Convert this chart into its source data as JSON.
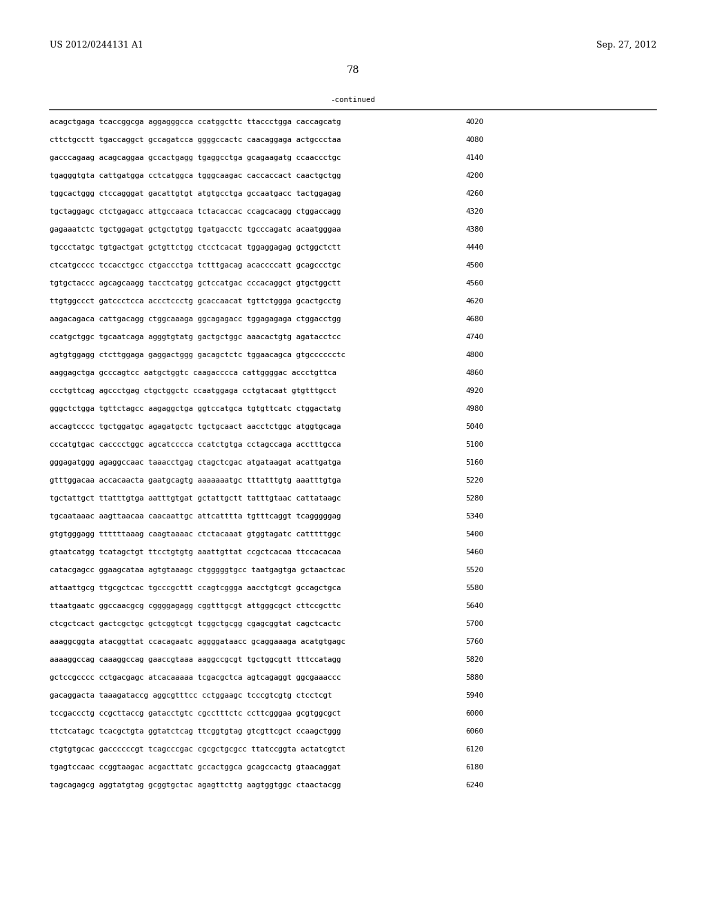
{
  "header_left": "US 2012/0244131 A1",
  "header_right": "Sep. 27, 2012",
  "page_number": "78",
  "continued_label": "-continued",
  "background_color": "#ffffff",
  "text_color": "#000000",
  "font_size_header": 9.0,
  "font_size_body": 7.8,
  "font_size_page": 10.5,
  "sequence_lines": [
    [
      "acagctgaga tcaccggcga aggagggcca ccatggcttc ttaccctgga caccagcatg",
      "4020"
    ],
    [
      "cttctgcctt tgaccaggct gccagatcca ggggccactc caacaggaga actgccctaa",
      "4080"
    ],
    [
      "gacccagaag acagcaggaa gccactgagg tgaggcctga gcagaagatg ccaaccctgc",
      "4140"
    ],
    [
      "tgagggtgta cattgatgga cctcatggca tgggcaagac caccaccact caactgctgg",
      "4200"
    ],
    [
      "tggcactggg ctccagggat gacattgtgt atgtgcctga gccaatgacc tactggagag",
      "4260"
    ],
    [
      "tgctaggagc ctctgagacc attgccaaca tctacaccac ccagcacagg ctggaccagg",
      "4320"
    ],
    [
      "gagaaatctc tgctggagat gctgctgtgg tgatgacctc tgcccagatc acaatgggaa",
      "4380"
    ],
    [
      "tgccctatgc tgtgactgat gctgttctgg ctcctcacat tggaggagag gctggctctt",
      "4440"
    ],
    [
      "ctcatgcccc tccacctgcc ctgaccctga tctttgacag acaccccatt gcagccctgc",
      "4500"
    ],
    [
      "tgtgctaccc agcagcaagg tacctcatgg gctccatgac cccacaggct gtgctggctt",
      "4560"
    ],
    [
      "ttgtggccct gatccctcca accctccctg gcaccaacat tgttctggga gcactgcctg",
      "4620"
    ],
    [
      "aagacagaca cattgacagg ctggcaaaga ggcagagacc tggagagaga ctggacctgg",
      "4680"
    ],
    [
      "ccatgctggc tgcaatcaga agggtgtatg gactgctggc aaacactgtg agatacctcc",
      "4740"
    ],
    [
      "agtgtggagg ctcttggaga gaggactggg gacagctctc tggaacagca gtgcccccctc",
      "4800"
    ],
    [
      "aaggagctga gcccagtcc aatgctggtc caagacccca cattggggac accctgttca",
      "4860"
    ],
    [
      "ccctgttcag agccctgag ctgctggctc ccaatggaga cctgtacaat gtgtttgcct",
      "4920"
    ],
    [
      "gggctctgga tgttctagcc aagaggctga ggtccatgca tgtgttcatc ctggactatg",
      "4980"
    ],
    [
      "accagtcccc tgctggatgc agagatgctc tgctgcaact aacctctggc atggtgcaga",
      "5040"
    ],
    [
      "cccatgtgac cacccctggc agcatcccca ccatctgtga cctagccaga acctttgcca",
      "5100"
    ],
    [
      "gggagatggg agaggccaac taaacctgag ctagctcgac atgataagat acattgatga",
      "5160"
    ],
    [
      "gtttggacaa accacaacta gaatgcagtg aaaaaaatgc tttatttgtg aaatttgtga",
      "5220"
    ],
    [
      "tgctattgct ttatttgtga aatttgtgat gctattgctt tatttgtaac cattataagc",
      "5280"
    ],
    [
      "tgcaataaac aagttaacaa caacaattgc attcatttta tgtttcaggt tcagggggag",
      "5340"
    ],
    [
      "gtgtgggagg ttttttaaag caagtaaaac ctctacaaat gtggtagatc catttttggc",
      "5400"
    ],
    [
      "gtaatcatgg tcatagctgt ttcctgtgtg aaattgttat ccgctcacaa ttccacacaa",
      "5460"
    ],
    [
      "catacgagcc ggaagcataa agtgtaaagc ctgggggtgcc taatgagtga gctaactcac",
      "5520"
    ],
    [
      "attaattgcg ttgcgctcac tgcccgcttt ccagtcggga aacctgtcgt gccagctgca",
      "5580"
    ],
    [
      "ttaatgaatc ggccaacgcg cggggagagg cggtttgcgt attgggcgct cttccgcttc",
      "5640"
    ],
    [
      "ctcgctcact gactcgctgc gctcggtcgt tcggctgcgg cgagcggtat cagctcactc",
      "5700"
    ],
    [
      "aaaggcggta atacggttat ccacagaatc aggggataacc gcaggaaaga acatgtgagc",
      "5760"
    ],
    [
      "aaaaggccag caaaggccag gaaccgtaaa aaggccgcgt tgctggcgtt tttccatagg",
      "5820"
    ],
    [
      "gctccgcccc cctgacgagc atcacaaaaa tcgacgctca agtcagaggt ggcgaaaccc",
      "5880"
    ],
    [
      "gacaggacta taaagataccg aggcgtttcc cctggaagc tcccgtcgtg ctcctcgt",
      "5940"
    ],
    [
      "tccgaccctg ccgcttaccg gatacctgtc cgcctttctc ccttcgggaa gcgtggcgct",
      "6000"
    ],
    [
      "ttctcatagc tcacgctgta ggtatctcag ttcggtgtag gtcgttcgct ccaagctggg",
      "6060"
    ],
    [
      "ctgtgtgcac gaccccccgt tcagcccgac cgcgctgcgcc ttatccggta actatcgtct",
      "6120"
    ],
    [
      "tgagtccaac ccggtaagac acgacttatc gccactggca gcagccactg gtaacaggat",
      "6180"
    ],
    [
      "tagcagagcg aggtatgtag gcggtgctac agagttcttg aagtggtggc ctaactacgg",
      "6240"
    ]
  ]
}
